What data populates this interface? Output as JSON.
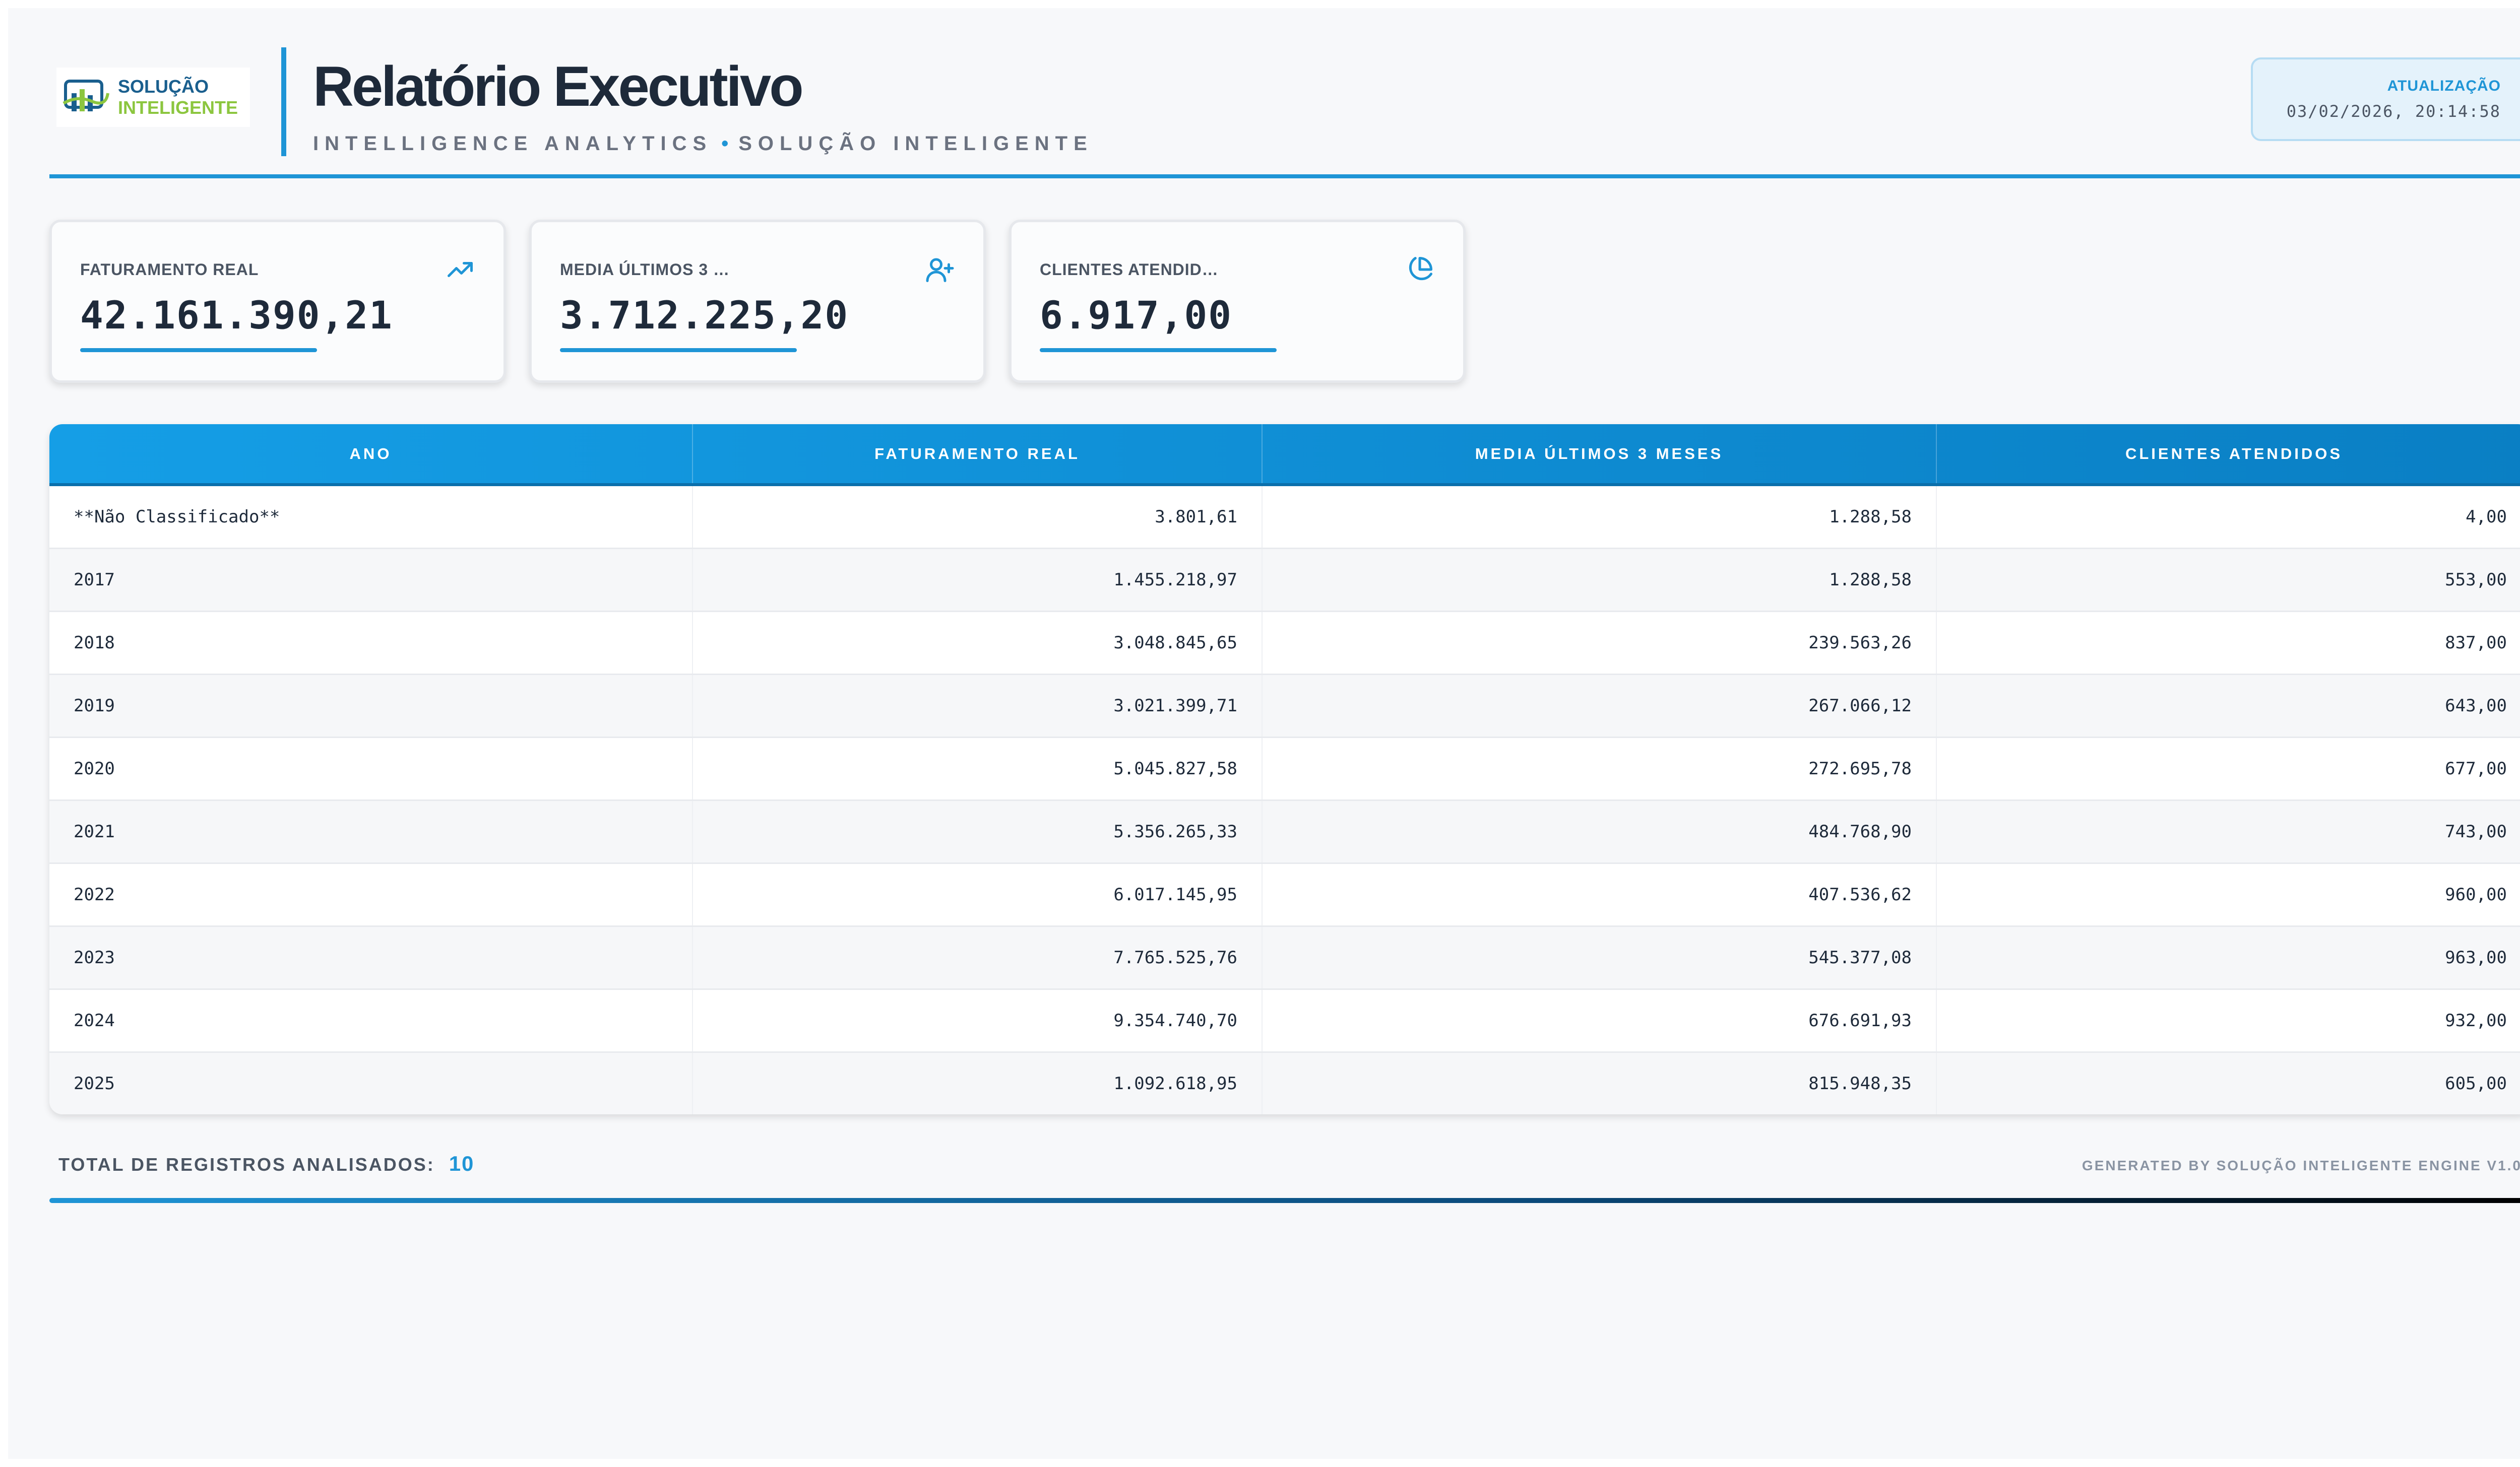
{
  "header": {
    "logo": {
      "line1": "SOLUÇÃO",
      "line2": "INTELIGENTE"
    },
    "title": "Relatório Executivo",
    "subtitle_left": "INTELLIGENCE ANALYTICS",
    "subtitle_right": "SOLUÇÃO INTELIGENTE",
    "update_label": "ATUALIZAÇÃO",
    "update_value": "03/02/2026, 20:14:58"
  },
  "kpis": [
    {
      "label": "FATURAMENTO REAL",
      "value": "42.161.390,21",
      "icon": "trending-up-icon"
    },
    {
      "label": "MEDIA ÚLTIMOS 3 …",
      "value": "3.712.225,20",
      "icon": "user-plus-icon"
    },
    {
      "label": "CLIENTES ATENDID…",
      "value": "6.917,00",
      "icon": "pie-chart-icon"
    }
  ],
  "table": {
    "headers": [
      "ANO",
      "FATURAMENTO REAL",
      "MEDIA ÚLTIMOS 3 MESES",
      "CLIENTES ATENDIDOS"
    ],
    "rows": [
      [
        "**Não Classificado**",
        "3.801,61",
        "1.288,58",
        "4,00"
      ],
      [
        "2017",
        "1.455.218,97",
        "1.288,58",
        "553,00"
      ],
      [
        "2018",
        "3.048.845,65",
        "239.563,26",
        "837,00"
      ],
      [
        "2019",
        "3.021.399,71",
        "267.066,12",
        "643,00"
      ],
      [
        "2020",
        "5.045.827,58",
        "272.695,78",
        "677,00"
      ],
      [
        "2021",
        "5.356.265,33",
        "484.768,90",
        "743,00"
      ],
      [
        "2022",
        "6.017.145,95",
        "407.536,62",
        "960,00"
      ],
      [
        "2023",
        "7.765.525,76",
        "545.377,08",
        "963,00"
      ],
      [
        "2024",
        "9.354.740,70",
        "676.691,93",
        "932,00"
      ],
      [
        "2025",
        "1.092.618,95",
        "815.948,35",
        "605,00"
      ]
    ]
  },
  "footer": {
    "total_label": "TOTAL DE REGISTROS ANALISADOS:",
    "total_count": "10",
    "generated_by": "GENERATED BY SOLUÇÃO INTELIGENTE ENGINE V1.0"
  },
  "colors": {
    "accent": "#1f95d6",
    "title": "#1e2a3a",
    "logo_blue": "#1a5f8e",
    "logo_green": "#8cc63f"
  }
}
